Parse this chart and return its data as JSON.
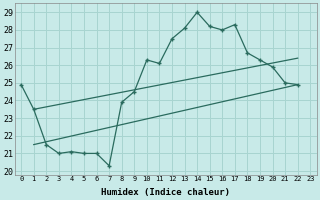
{
  "xlabel": "Humidex (Indice chaleur)",
  "bg_color": "#c8eae8",
  "grid_color": "#a8d4d0",
  "line_color": "#2a6b5e",
  "xlim": [
    -0.5,
    23.5
  ],
  "ylim": [
    19.8,
    29.5
  ],
  "yticks": [
    20,
    21,
    22,
    23,
    24,
    25,
    26,
    27,
    28,
    29
  ],
  "xticks": [
    0,
    1,
    2,
    3,
    4,
    5,
    6,
    7,
    8,
    9,
    10,
    11,
    12,
    13,
    14,
    15,
    16,
    17,
    18,
    19,
    20,
    21,
    22,
    23
  ],
  "line1_x": [
    0,
    1,
    2,
    3,
    4,
    5,
    6,
    7,
    8,
    9,
    10,
    11,
    12,
    13,
    14,
    15,
    16,
    17,
    18,
    19,
    20,
    21,
    22
  ],
  "line1_y": [
    24.9,
    23.5,
    21.5,
    21.0,
    21.1,
    21.0,
    21.0,
    20.3,
    23.9,
    24.5,
    26.3,
    26.1,
    27.5,
    28.1,
    29.0,
    28.2,
    28.0,
    28.3,
    26.7,
    26.3,
    25.9,
    25.0,
    24.9
  ],
  "line2_x": [
    1,
    22
  ],
  "line2_y": [
    21.5,
    24.9
  ],
  "line3_x": [
    1,
    22
  ],
  "line3_y": [
    23.5,
    26.4
  ]
}
